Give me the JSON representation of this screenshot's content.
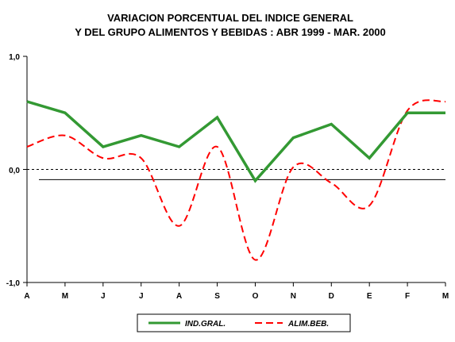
{
  "chart_data": {
    "type": "line",
    "title_lines": [
      "VARIACION PORCENTUAL DEL INDICE GENERAL",
      "Y DEL GRUPO ALIMENTOS Y BEBIDAS : ABR 1999 - MAR. 2000"
    ],
    "categories": [
      "A",
      "M",
      "J",
      "J",
      "A",
      "S",
      "O",
      "N",
      "D",
      "E",
      "F",
      "M"
    ],
    "y_tick_labels": [
      "1,0",
      "0,0",
      "-1,0"
    ],
    "ylim": [
      -1,
      1
    ],
    "y_ticks": [
      1,
      0,
      -1
    ],
    "reference_lines": [
      {
        "value": 0,
        "style": "dashed"
      },
      {
        "value": -0.09,
        "style": "solid"
      }
    ],
    "series": [
      {
        "name": "IND.GRAL.",
        "color": "#339933",
        "style": "solid",
        "values": [
          0.6,
          0.5,
          0.2,
          0.3,
          0.2,
          0.46,
          -0.1,
          0.28,
          0.4,
          0.1,
          0.5,
          0.5
        ]
      },
      {
        "name": "ALIM.BEB.",
        "color": "#ff0000",
        "style": "dashed-smooth",
        "values": [
          0.2,
          0.3,
          0.1,
          0.1,
          -0.5,
          0.2,
          -0.8,
          0.02,
          -0.12,
          -0.32,
          0.52,
          0.6
        ]
      }
    ],
    "legend_position": "bottom",
    "grid": false
  }
}
